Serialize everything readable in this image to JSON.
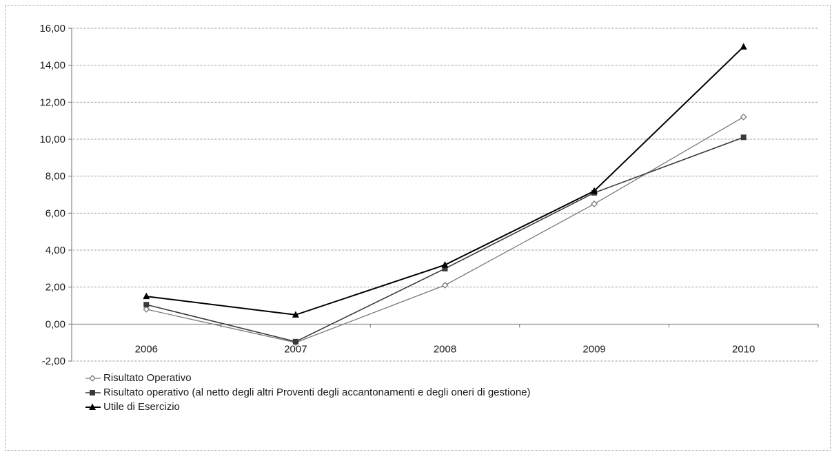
{
  "chart_data": {
    "type": "line",
    "title": "",
    "xlabel": "",
    "ylabel": "",
    "categories": [
      "2006",
      "2007",
      "2008",
      "2009",
      "2010"
    ],
    "ylim": [
      -2,
      16
    ],
    "ytick_step": 2,
    "ytick_labels": [
      "-2,00",
      "0,00",
      "2,00",
      "4,00",
      "6,00",
      "8,00",
      "10,00",
      "12,00",
      "14,00",
      "16,00"
    ],
    "grid": true,
    "legend_position": "bottom-left",
    "series": [
      {
        "name": "Risultato Operativo",
        "values": [
          0.8,
          -1.0,
          2.1,
          6.5,
          11.2
        ],
        "marker": "diamond",
        "color": "#7a7a7a"
      },
      {
        "name": "Risultato operativo (al netto degli altri Proventi degli accantonamenti e degli oneri di gestione)",
        "values": [
          1.05,
          -0.95,
          3.0,
          7.1,
          10.1
        ],
        "marker": "square",
        "color": "#3a3a3a"
      },
      {
        "name": "Utile di Esercizio",
        "values": [
          1.5,
          0.5,
          3.2,
          7.2,
          15.0
        ],
        "marker": "triangle",
        "color": "#000000"
      }
    ]
  }
}
